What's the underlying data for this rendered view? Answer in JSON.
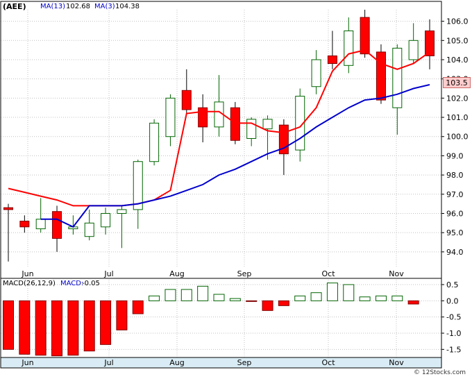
{
  "header": {
    "symbol": "(AEE)",
    "ma13_label": "MA(13)",
    "ma13_value": "102.68",
    "ma3_label": "MA(3)",
    "ma3_value": "104.38"
  },
  "macd_header": {
    "params": "MACD(26,12,9)",
    "label": "MACD:",
    "value": "-0.05"
  },
  "price_badge": "103.5",
  "watermark": "© 12Stocks.com",
  "colors": {
    "up_candle": "#006400",
    "down_candle": "#ff0000",
    "ma13_line": "#0000cc",
    "ma3_line": "#ff0000",
    "grid": "#c0c0c0",
    "badge_bg": "#ffcccc",
    "axis_band": "#d9ecf5"
  },
  "chart_data": [
    {
      "type": "candlestick",
      "title": "(AEE)",
      "x_labels": [
        "Jun",
        "Jul",
        "Aug",
        "Sep",
        "Oct",
        "Nov"
      ],
      "y_ticks": [
        "94.0",
        "95.0",
        "96.0",
        "97.0",
        "98.0",
        "99.0",
        "100.0",
        "101.0",
        "102.0",
        "103.0",
        "104.0",
        "105.0",
        "106.0"
      ],
      "ylim": [
        93.2,
        106.6
      ],
      "grid": true,
      "candles": [
        {
          "o": 96.3,
          "h": 96.5,
          "l": 93.5,
          "c": 96.2
        },
        {
          "o": 95.6,
          "h": 95.9,
          "l": 95.0,
          "c": 95.3
        },
        {
          "o": 95.2,
          "h": 96.8,
          "l": 95.0,
          "c": 95.7
        },
        {
          "o": 96.1,
          "h": 96.4,
          "l": 94.0,
          "c": 94.7
        },
        {
          "o": 95.2,
          "h": 95.9,
          "l": 94.9,
          "c": 95.3
        },
        {
          "o": 94.8,
          "h": 96.2,
          "l": 94.6,
          "c": 95.5
        },
        {
          "o": 95.3,
          "h": 96.3,
          "l": 94.9,
          "c": 96.0
        },
        {
          "o": 96.0,
          "h": 96.4,
          "l": 94.2,
          "c": 96.2
        },
        {
          "o": 96.2,
          "h": 98.8,
          "l": 95.2,
          "c": 98.7
        },
        {
          "o": 98.7,
          "h": 100.9,
          "l": 98.5,
          "c": 100.7
        },
        {
          "o": 100.0,
          "h": 102.2,
          "l": 99.5,
          "c": 102.0
        },
        {
          "o": 102.4,
          "h": 103.5,
          "l": 101.2,
          "c": 101.4
        },
        {
          "o": 101.5,
          "h": 102.2,
          "l": 99.7,
          "c": 100.5
        },
        {
          "o": 100.5,
          "h": 103.2,
          "l": 100.0,
          "c": 101.8
        },
        {
          "o": 101.5,
          "h": 101.8,
          "l": 99.6,
          "c": 99.8
        },
        {
          "o": 99.9,
          "h": 101.0,
          "l": 99.5,
          "c": 100.9
        },
        {
          "o": 100.4,
          "h": 101.1,
          "l": 98.8,
          "c": 100.9
        },
        {
          "o": 100.6,
          "h": 100.9,
          "l": 98.0,
          "c": 99.1
        },
        {
          "o": 99.3,
          "h": 102.5,
          "l": 98.7,
          "c": 102.1
        },
        {
          "o": 102.6,
          "h": 104.5,
          "l": 102.2,
          "c": 104.0
        },
        {
          "o": 104.2,
          "h": 105.5,
          "l": 103.5,
          "c": 103.8
        },
        {
          "o": 103.7,
          "h": 106.2,
          "l": 103.3,
          "c": 105.5
        },
        {
          "o": 106.2,
          "h": 106.6,
          "l": 104.1,
          "c": 104.3
        },
        {
          "o": 104.4,
          "h": 104.8,
          "l": 101.7,
          "c": 101.9
        },
        {
          "o": 101.5,
          "h": 104.8,
          "l": 100.1,
          "c": 104.6
        },
        {
          "o": 104.0,
          "h": 105.9,
          "l": 103.8,
          "c": 105.0
        },
        {
          "o": 105.5,
          "h": 106.1,
          "l": 103.5,
          "c": 104.2
        }
      ],
      "series": [
        {
          "name": "MA(13)",
          "values": [
            null,
            null,
            95.7,
            95.7,
            95.3,
            96.4,
            96.4,
            96.4,
            96.5,
            96.7,
            96.9,
            97.2,
            97.5,
            98.0,
            98.3,
            98.7,
            99.1,
            99.4,
            99.9,
            100.5,
            101.0,
            101.5,
            101.9,
            102.0,
            102.2,
            102.5,
            102.7
          ]
        },
        {
          "name": "MA(3)",
          "values": [
            97.3,
            97.1,
            96.9,
            96.7,
            96.4,
            96.4,
            96.4,
            96.4,
            96.5,
            96.7,
            97.2,
            101.2,
            101.3,
            101.3,
            100.7,
            100.7,
            100.3,
            100.2,
            100.5,
            101.5,
            103.4,
            104.3,
            104.5,
            103.8,
            103.5,
            103.8,
            104.4
          ]
        }
      ]
    },
    {
      "type": "bar",
      "title": "MACD(26,12,9)",
      "x_labels": [
        "Jun",
        "Jul",
        "Aug",
        "Sep",
        "Oct",
        "Nov"
      ],
      "y_ticks": [
        "0.5",
        "0.0",
        "-0.5",
        "-1.0",
        "-1.5"
      ],
      "ylim": [
        -1.75,
        0.65
      ],
      "grid": true,
      "values": [
        -1.5,
        -1.65,
        -1.68,
        -1.7,
        -1.68,
        -1.55,
        -1.35,
        -0.9,
        -0.4,
        0.15,
        0.35,
        0.35,
        0.45,
        0.2,
        0.07,
        -0.02,
        -0.3,
        -0.15,
        0.15,
        0.25,
        0.55,
        0.5,
        0.12,
        0.15,
        0.15,
        -0.1
      ]
    }
  ]
}
